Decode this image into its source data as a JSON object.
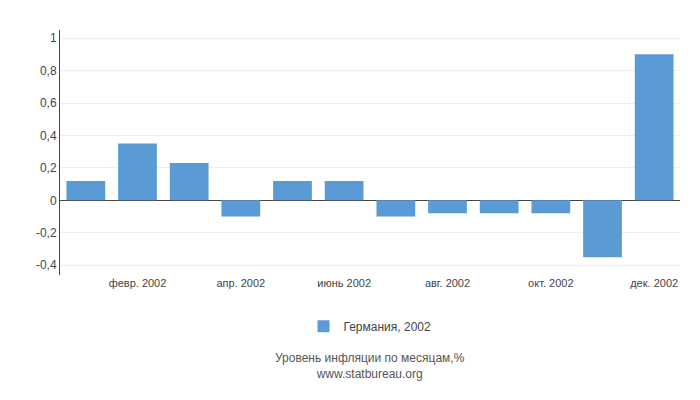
{
  "chart_data": {
    "type": "bar",
    "categories": [
      null,
      "февр. 2002",
      null,
      "апр. 2002",
      null,
      "июнь 2002",
      null,
      "авг. 2002",
      null,
      "окт. 2002",
      null,
      "дек. 2002"
    ],
    "series": [
      {
        "name": "Германия, 2002",
        "color": "#5b9bd5",
        "values": [
          0.12,
          0.35,
          0.23,
          -0.1,
          0.12,
          0.12,
          -0.1,
          -0.08,
          -0.08,
          -0.08,
          -0.35,
          0.9
        ]
      }
    ],
    "xlabel": "Уровень инфляции по месяцам,%\nwww.statbureau.org",
    "ylim": [
      -0.46,
      1.05
    ],
    "yticks": [
      {
        "value": -0.4,
        "label": "-0,4"
      },
      {
        "value": -0.2,
        "label": "-0,2"
      },
      0,
      {
        "value": 0.2,
        "label": "0,2"
      },
      {
        "value": 0.4,
        "label": "0,4"
      },
      {
        "value": 0.6,
        "label": "0,6"
      },
      {
        "value": 0.8,
        "label": "0,8"
      },
      1
    ],
    "grid": true,
    "legend": "bottom"
  }
}
